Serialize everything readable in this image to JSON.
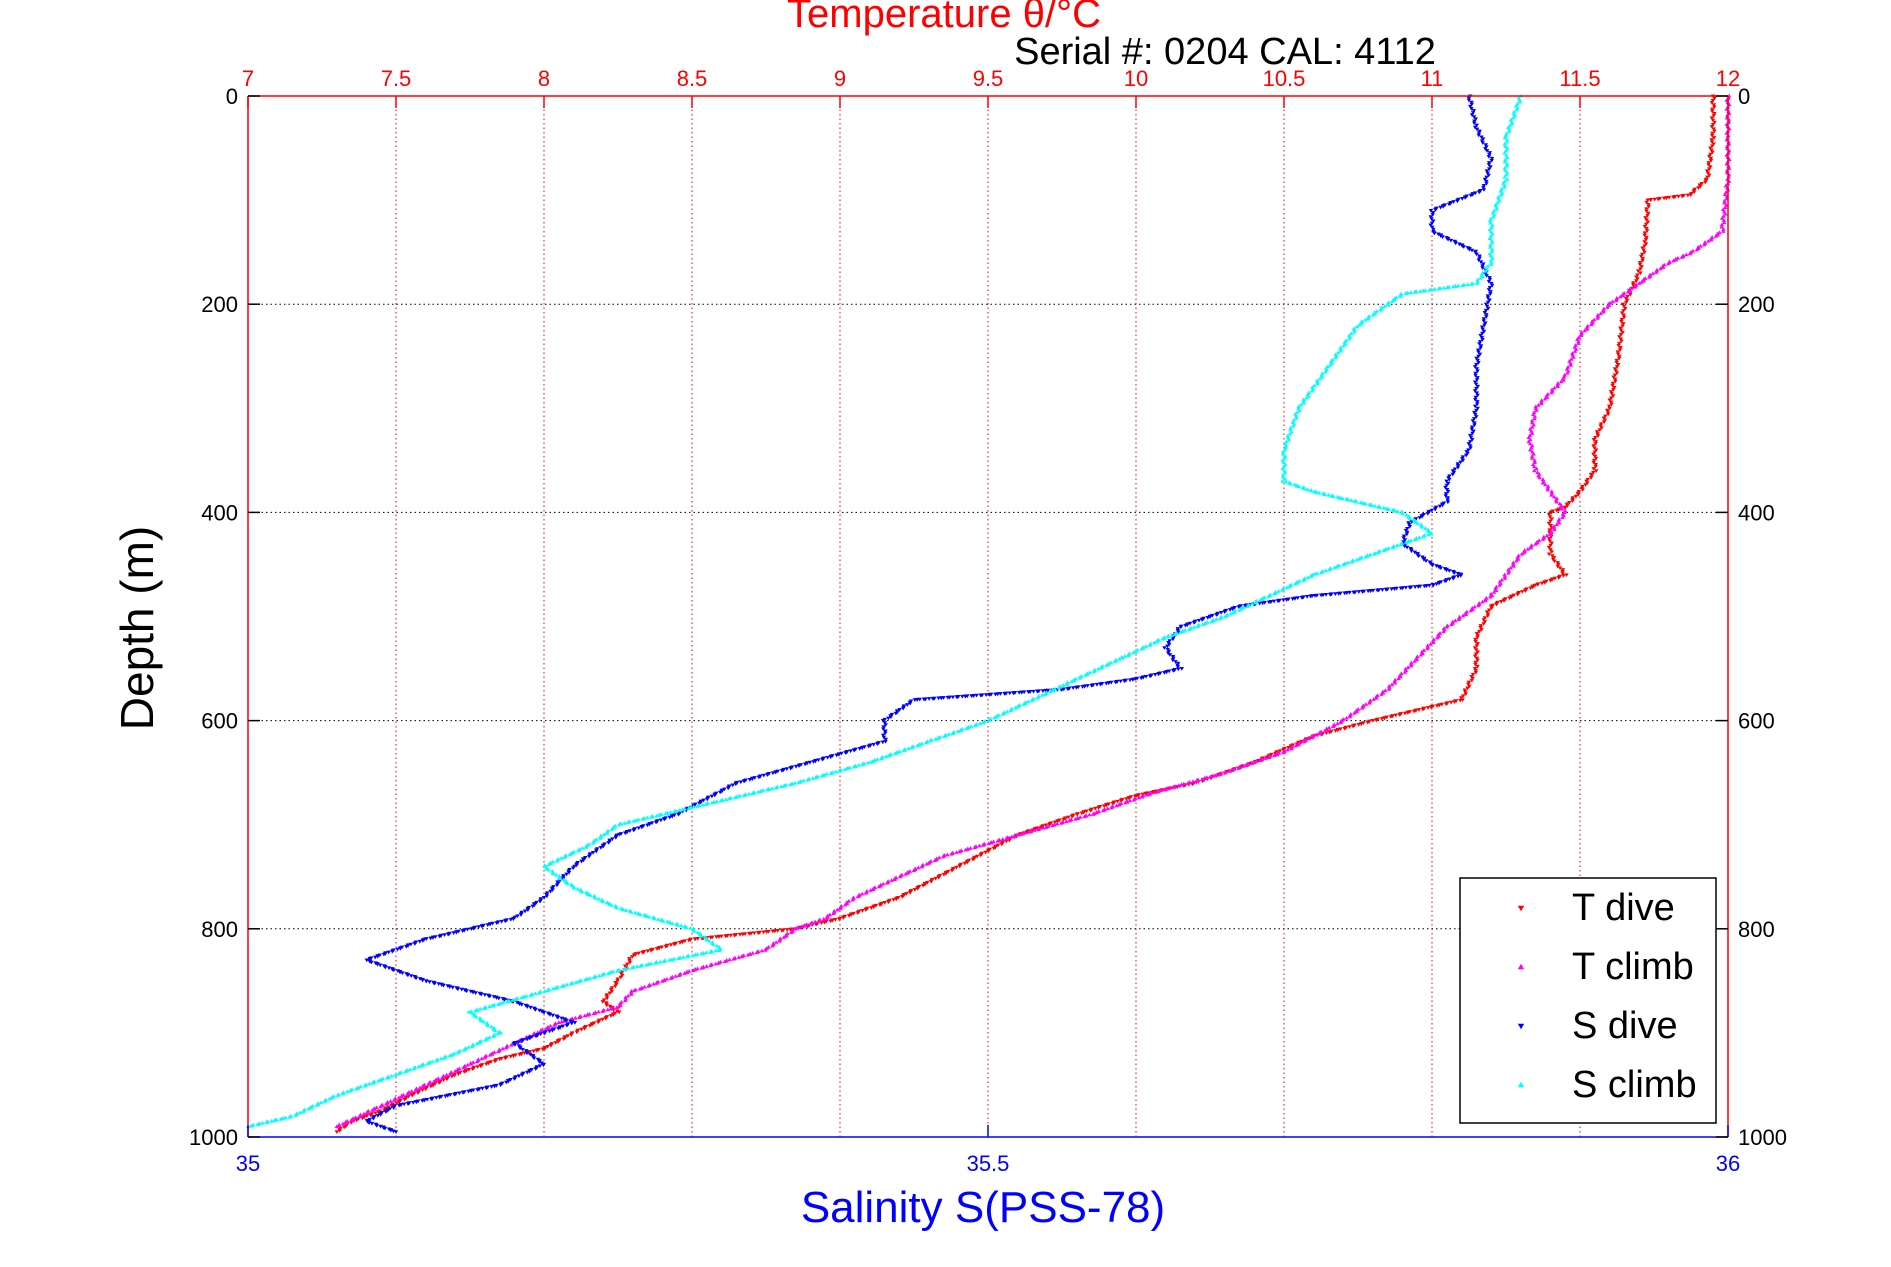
{
  "chart_data": {
    "type": "scatter",
    "title": "Temperature θ/°C",
    "subtitle": "Serial #: 0204  CAL: 4112",
    "xlabel": "Salinity S(PSS-78)",
    "ylabel": "Depth (m)",
    "top_axis": {
      "label": "Temperature θ/°C",
      "range": [
        7,
        12
      ],
      "ticks": [
        "7",
        "7.5",
        "8",
        "8.5",
        "9",
        "9.5",
        "10",
        "10.5",
        "11",
        "11.5",
        "12"
      ]
    },
    "bottom_axis": {
      "label": "Salinity S(PSS-78)",
      "range": [
        35,
        36
      ],
      "ticks": [
        "35",
        "35.5",
        "36"
      ]
    },
    "y_axis": {
      "range": [
        0,
        1000
      ],
      "reversed": true,
      "ticks": [
        "0",
        "200",
        "400",
        "600",
        "800",
        "1000"
      ]
    },
    "grid": true,
    "legend": {
      "position": "bottom-right",
      "entries": [
        "T dive",
        "T climb",
        "S dive",
        "S climb"
      ]
    },
    "series": [
      {
        "name": "T dive",
        "axis": "temperature",
        "color": "#ff0000",
        "marker": "triangle-down",
        "points": [
          [
            11.95,
            0
          ],
          [
            11.95,
            40
          ],
          [
            11.93,
            80
          ],
          [
            11.87,
            95
          ],
          [
            11.73,
            100
          ],
          [
            11.72,
            140
          ],
          [
            11.7,
            170
          ],
          [
            11.65,
            200
          ],
          [
            11.63,
            250
          ],
          [
            11.6,
            300
          ],
          [
            11.55,
            330
          ],
          [
            11.55,
            360
          ],
          [
            11.5,
            380
          ],
          [
            11.45,
            395
          ],
          [
            11.4,
            400
          ],
          [
            11.4,
            440
          ],
          [
            11.45,
            460
          ],
          [
            11.35,
            470
          ],
          [
            11.2,
            490
          ],
          [
            11.15,
            520
          ],
          [
            11.15,
            550
          ],
          [
            11.1,
            580
          ],
          [
            10.8,
            600
          ],
          [
            10.6,
            615
          ],
          [
            10.4,
            640
          ],
          [
            10.2,
            660
          ],
          [
            10.0,
            672
          ],
          [
            9.8,
            690
          ],
          [
            9.6,
            710
          ],
          [
            9.4,
            740
          ],
          [
            9.2,
            770
          ],
          [
            9.0,
            790
          ],
          [
            8.85,
            800
          ],
          [
            8.5,
            810
          ],
          [
            8.3,
            825
          ],
          [
            8.25,
            850
          ],
          [
            8.2,
            870
          ],
          [
            8.25,
            880
          ],
          [
            8.1,
            900
          ],
          [
            8.0,
            915
          ],
          [
            7.85,
            925
          ],
          [
            7.7,
            940
          ],
          [
            7.55,
            960
          ],
          [
            7.45,
            975
          ],
          [
            7.35,
            985
          ],
          [
            7.3,
            995
          ]
        ]
      },
      {
        "name": "T climb",
        "axis": "temperature",
        "color": "#ff00ff",
        "marker": "triangle-up",
        "points": [
          [
            12.0,
            0
          ],
          [
            12.0,
            40
          ],
          [
            12.0,
            80
          ],
          [
            11.98,
            130
          ],
          [
            11.88,
            150
          ],
          [
            11.8,
            160
          ],
          [
            11.7,
            180
          ],
          [
            11.6,
            200
          ],
          [
            11.5,
            230
          ],
          [
            11.45,
            270
          ],
          [
            11.35,
            300
          ],
          [
            11.33,
            330
          ],
          [
            11.35,
            360
          ],
          [
            11.4,
            380
          ],
          [
            11.45,
            400
          ],
          [
            11.4,
            420
          ],
          [
            11.3,
            440
          ],
          [
            11.25,
            460
          ],
          [
            11.2,
            480
          ],
          [
            11.05,
            510
          ],
          [
            10.95,
            540
          ],
          [
            10.85,
            570
          ],
          [
            10.7,
            600
          ],
          [
            10.5,
            630
          ],
          [
            10.3,
            650
          ],
          [
            10.05,
            670
          ],
          [
            9.85,
            690
          ],
          [
            9.6,
            710
          ],
          [
            9.35,
            730
          ],
          [
            9.2,
            750
          ],
          [
            9.05,
            770
          ],
          [
            8.95,
            790
          ],
          [
            8.85,
            800
          ],
          [
            8.75,
            820
          ],
          [
            8.5,
            840
          ],
          [
            8.3,
            860
          ],
          [
            8.25,
            875
          ],
          [
            8.05,
            890
          ],
          [
            7.9,
            910
          ],
          [
            7.75,
            930
          ],
          [
            7.6,
            950
          ],
          [
            7.45,
            970
          ],
          [
            7.3,
            990
          ]
        ]
      },
      {
        "name": "S dive",
        "axis": "salinity",
        "color": "#0000ff",
        "marker": "triangle-down",
        "points": [
          [
            35.825,
            0
          ],
          [
            35.83,
            30
          ],
          [
            35.84,
            60
          ],
          [
            35.835,
            90
          ],
          [
            35.8,
            110
          ],
          [
            35.8,
            130
          ],
          [
            35.83,
            150
          ],
          [
            35.84,
            180
          ],
          [
            35.835,
            220
          ],
          [
            35.83,
            260
          ],
          [
            35.83,
            300
          ],
          [
            35.825,
            340
          ],
          [
            35.81,
            370
          ],
          [
            35.81,
            390
          ],
          [
            35.785,
            410
          ],
          [
            35.78,
            430
          ],
          [
            35.8,
            450
          ],
          [
            35.82,
            460
          ],
          [
            35.8,
            470
          ],
          [
            35.72,
            480
          ],
          [
            35.67,
            490
          ],
          [
            35.63,
            510
          ],
          [
            35.62,
            530
          ],
          [
            35.63,
            550
          ],
          [
            35.6,
            560
          ],
          [
            35.55,
            570
          ],
          [
            35.45,
            580
          ],
          [
            35.43,
            600
          ],
          [
            35.43,
            620
          ],
          [
            35.38,
            640
          ],
          [
            35.33,
            660
          ],
          [
            35.29,
            690
          ],
          [
            35.25,
            710
          ],
          [
            35.22,
            740
          ],
          [
            35.2,
            770
          ],
          [
            35.18,
            790
          ],
          [
            35.15,
            800
          ],
          [
            35.12,
            810
          ],
          [
            35.08,
            830
          ],
          [
            35.12,
            850
          ],
          [
            35.18,
            870
          ],
          [
            35.22,
            890
          ],
          [
            35.18,
            910
          ],
          [
            35.2,
            930
          ],
          [
            35.17,
            950
          ],
          [
            35.1,
            970
          ],
          [
            35.08,
            985
          ],
          [
            35.1,
            995
          ]
        ]
      },
      {
        "name": "S climb",
        "axis": "salinity",
        "color": "#00ffff",
        "marker": "triangle-up",
        "points": [
          [
            35.86,
            0
          ],
          [
            35.85,
            40
          ],
          [
            35.85,
            80
          ],
          [
            35.84,
            120
          ],
          [
            35.84,
            160
          ],
          [
            35.83,
            180
          ],
          [
            35.78,
            190
          ],
          [
            35.75,
            220
          ],
          [
            35.73,
            260
          ],
          [
            35.71,
            300
          ],
          [
            35.7,
            340
          ],
          [
            35.7,
            370
          ],
          [
            35.72,
            380
          ],
          [
            35.78,
            400
          ],
          [
            35.8,
            420
          ],
          [
            35.76,
            440
          ],
          [
            35.72,
            460
          ],
          [
            35.69,
            480
          ],
          [
            35.66,
            500
          ],
          [
            35.62,
            520
          ],
          [
            35.59,
            540
          ],
          [
            35.56,
            560
          ],
          [
            35.53,
            580
          ],
          [
            35.5,
            600
          ],
          [
            35.46,
            620
          ],
          [
            35.42,
            640
          ],
          [
            35.37,
            660
          ],
          [
            35.31,
            680
          ],
          [
            35.25,
            700
          ],
          [
            35.23,
            720
          ],
          [
            35.2,
            740
          ],
          [
            35.22,
            760
          ],
          [
            35.25,
            780
          ],
          [
            35.3,
            800
          ],
          [
            35.32,
            820
          ],
          [
            35.25,
            840
          ],
          [
            35.2,
            860
          ],
          [
            35.15,
            880
          ],
          [
            35.17,
            900
          ],
          [
            35.14,
            920
          ],
          [
            35.1,
            940
          ],
          [
            35.06,
            960
          ],
          [
            35.03,
            980
          ],
          [
            35.0,
            990
          ]
        ]
      }
    ]
  }
}
